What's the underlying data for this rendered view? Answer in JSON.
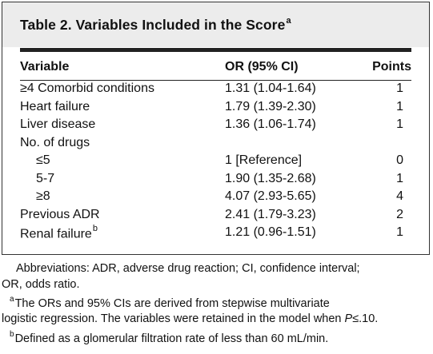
{
  "table": {
    "title": "Table 2. Variables Included in the Score",
    "title_footnote_mark": "a",
    "columns": {
      "variable": "Variable",
      "or": "OR (95% CI)",
      "points": "Points"
    },
    "rows": [
      {
        "variable": "≥4 Comorbid conditions",
        "or": "1.31 (1.04-1.64)",
        "points": "1",
        "indent": false,
        "sup": ""
      },
      {
        "variable": "Heart failure",
        "or": "1.79 (1.39-2.30)",
        "points": "1",
        "indent": false,
        "sup": ""
      },
      {
        "variable": "Liver disease",
        "or": "1.36 (1.06-1.74)",
        "points": "1",
        "indent": false,
        "sup": ""
      },
      {
        "variable": "No. of drugs",
        "or": "",
        "points": "",
        "indent": false,
        "sup": ""
      },
      {
        "variable": "≤5",
        "or": "1 [Reference]",
        "points": "0",
        "indent": true,
        "sup": ""
      },
      {
        "variable": "5-7",
        "or": "1.90 (1.35-2.68)",
        "points": "1",
        "indent": true,
        "sup": ""
      },
      {
        "variable": "≥8",
        "or": "4.07 (2.93-5.65)",
        "points": "4",
        "indent": true,
        "sup": ""
      },
      {
        "variable": "Previous ADR",
        "or": "2.41 (1.79-3.23)",
        "points": "2",
        "indent": false,
        "sup": ""
      },
      {
        "variable": "Renal failure",
        "or": "1.21 (0.96-1.51)",
        "points": "1",
        "indent": false,
        "sup": "b"
      }
    ]
  },
  "footnotes": {
    "abbreviations_line1": "Abbreviations: ADR, adverse drug reaction; CI, confidence interval;",
    "abbreviations_line2": "OR, odds ratio.",
    "a_mark": "a",
    "a_line1": "The ORs and 95% CIs are derived from stepwise multivariate",
    "a_line2_pre": "logistic regression. The variables were retained in the model when ",
    "a_line2_var": "P",
    "a_line2_post": "≤.10.",
    "b_mark": "b",
    "b_line1": "Defined as a glomerular filtration rate of less than 60 mL/min."
  }
}
